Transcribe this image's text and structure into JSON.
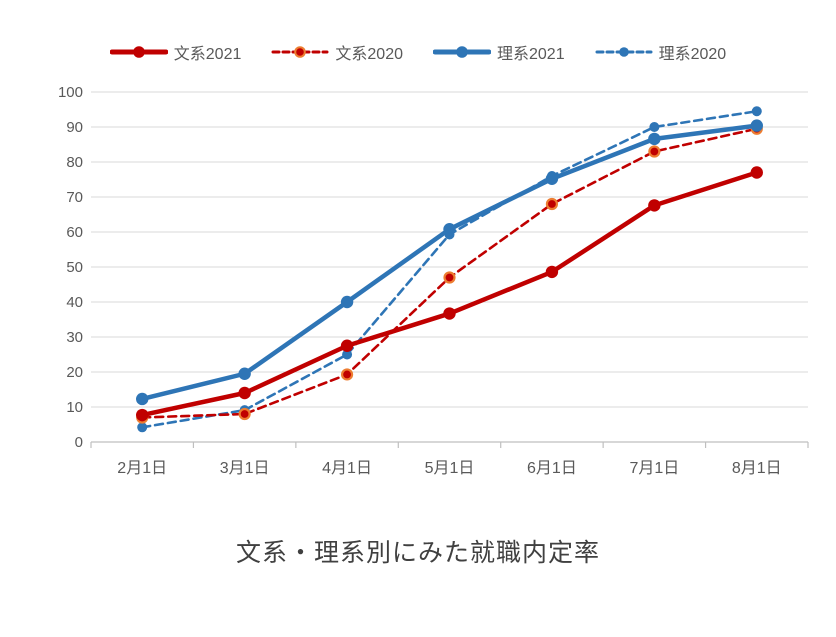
{
  "chart_data": {
    "type": "line",
    "title": "文系・理系別にみた就職内定率",
    "categories": [
      "2月1日",
      "3月1日",
      "4月1日",
      "5月1日",
      "6月1日",
      "7月1日",
      "8月1日"
    ],
    "y_ticks": [
      0,
      10,
      20,
      30,
      40,
      50,
      60,
      70,
      80,
      90,
      100
    ],
    "ylim": [
      0,
      100
    ],
    "grid": "horizontal",
    "legend_position": "top",
    "series": [
      {
        "name": "文系2021",
        "values": [
          7.7,
          14.0,
          27.5,
          36.7,
          48.6,
          67.6,
          77.0
        ],
        "color": "#C00000",
        "style": "solid"
      },
      {
        "name": "文系2020",
        "values": [
          7.0,
          8.0,
          19.3,
          47.0,
          68.0,
          83.0,
          89.5
        ],
        "color": "#C00000",
        "style": "dashed",
        "marker_ring": "#ED7D31"
      },
      {
        "name": "理系2021",
        "values": [
          12.3,
          19.5,
          40.0,
          60.8,
          75.2,
          86.6,
          90.4
        ],
        "color": "#2E75B6",
        "style": "solid"
      },
      {
        "name": "理系2020",
        "values": [
          4.2,
          9.1,
          25.0,
          59.3,
          76.0,
          90.0,
          94.5
        ],
        "color": "#2E75B6",
        "style": "dashed"
      }
    ],
    "colors": {
      "gridline": "#D9D9D9",
      "axis_line": "#BFBFBF",
      "tick_label": "#595959",
      "title": "#404040"
    }
  }
}
